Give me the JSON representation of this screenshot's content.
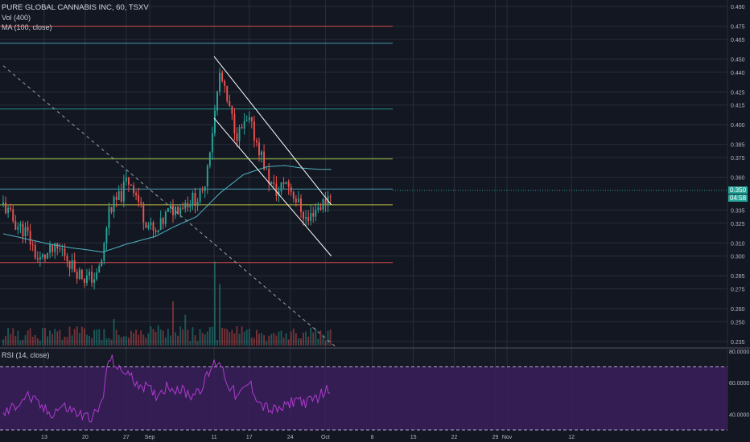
{
  "legend": {
    "symbol": "PURE GLOBAL CANNABIS INC, 60, TSXV",
    "volume": "Vol (400)",
    "ma": "MA (100, close)"
  },
  "rsi_legend": "RSI (14, close)",
  "price_tag": "0.350",
  "countdown_tag": "04:58",
  "colors": {
    "background": "#131722",
    "up": "#26a69a",
    "down": "#ef5350",
    "ma": "#4fb3c0",
    "rsi_line": "#b03ad1",
    "rsi_band": "#3a1f5c",
    "grid": "#2a2e39",
    "axis_text": "#b2b5be"
  },
  "chart_data": {
    "type": "candlestick",
    "symbol": "PURE GLOBAL CANNABIS INC",
    "interval": "60",
    "exchange": "TSXV",
    "price_axis": {
      "ticks": [
        "0.490",
        "0.475",
        "0.465",
        "0.450",
        "0.440",
        "0.425",
        "0.415",
        "0.400",
        "0.385",
        "0.375",
        "0.360",
        "0.335",
        "0.325",
        "0.310",
        "0.300",
        "0.285",
        "0.275",
        "0.260",
        "0.250",
        "0.235"
      ],
      "range": [
        0.23,
        0.495
      ]
    },
    "x_axis": {
      "ticks": [
        "13",
        "20",
        "27",
        "Sep",
        "11",
        "17",
        "24",
        "Oct",
        "8",
        "15",
        "22",
        "29",
        "Nov",
        "12"
      ]
    },
    "rsi_axis": {
      "ticks": [
        "80.0000",
        "60.0000",
        "40.0000"
      ],
      "range": [
        30,
        82
      ],
      "bands": [
        70,
        30
      ]
    },
    "last_price": 0.35,
    "horizontal_lines": [
      {
        "price": 0.475,
        "color": "#ef5350"
      },
      {
        "price": 0.462,
        "color": "#4fb3c0"
      },
      {
        "price": 0.412,
        "color": "#26a69a"
      },
      {
        "price": 0.374,
        "color": "#a5d64a"
      },
      {
        "price": 0.351,
        "color": "#4fb3c0"
      },
      {
        "price": 0.339,
        "color": "#d8d84a"
      },
      {
        "price": 0.295,
        "color": "#ef5350"
      }
    ],
    "trendlines": [
      {
        "from": [
          "Sep 11",
          0.452
        ],
        "to": [
          "Oct 1",
          0.339
        ],
        "color": "#ffffff",
        "style": "solid"
      },
      {
        "from": [
          "Sep 11",
          0.405
        ],
        "to": [
          "Oct 1",
          0.3
        ],
        "color": "#ffffff",
        "style": "solid"
      },
      {
        "from": [
          "Aug 6",
          0.445
        ],
        "to": [
          "Oct 2",
          0.23
        ],
        "color": "#9aa0ab",
        "style": "dashed"
      }
    ],
    "price_anchors": [
      [
        "Aug 6",
        0.339
      ],
      [
        "Aug 8",
        0.325
      ],
      [
        "Aug 10",
        0.318
      ],
      [
        "Aug 12",
        0.296
      ],
      [
        "Aug 14",
        0.303
      ],
      [
        "Aug 16",
        0.305
      ],
      [
        "Aug 18",
        0.291
      ],
      [
        "Aug 20",
        0.283
      ],
      [
        "Aug 22",
        0.284
      ],
      [
        "Aug 23",
        0.3
      ],
      [
        "Aug 24",
        0.335
      ],
      [
        "Aug 26",
        0.345
      ],
      [
        "Aug 27",
        0.357
      ],
      [
        "Aug 28",
        0.356
      ],
      [
        "Aug 30",
        0.33
      ],
      [
        "Sep 1",
        0.315
      ],
      [
        "Sep 3",
        0.333
      ],
      [
        "Sep 5",
        0.338
      ],
      [
        "Sep 7",
        0.343
      ],
      [
        "Sep 9",
        0.345
      ],
      [
        "Sep 10",
        0.375
      ],
      [
        "Sep 11",
        0.405
      ],
      [
        "Sep 12",
        0.44
      ],
      [
        "Sep 13",
        0.42
      ],
      [
        "Sep 14",
        0.405
      ],
      [
        "Sep 15",
        0.392
      ],
      [
        "Sep 16",
        0.398
      ],
      [
        "Sep 17",
        0.402
      ],
      [
        "Sep 18",
        0.39
      ],
      [
        "Sep 19",
        0.378
      ],
      [
        "Sep 20",
        0.362
      ],
      [
        "Sep 21",
        0.352
      ],
      [
        "Sep 22",
        0.348
      ],
      [
        "Sep 23",
        0.358
      ],
      [
        "Sep 24",
        0.352
      ],
      [
        "Sep 25",
        0.343
      ],
      [
        "Sep 26",
        0.334
      ],
      [
        "Sep 27",
        0.326
      ],
      [
        "Sep 28",
        0.335
      ],
      [
        "Sep 29",
        0.338
      ],
      [
        "Sep 30",
        0.342
      ],
      [
        "Oct 1",
        0.35
      ]
    ],
    "ma_anchors": [
      [
        "Aug 6",
        0.317
      ],
      [
        "Aug 10",
        0.313
      ],
      [
        "Aug 14",
        0.309
      ],
      [
        "Aug 18",
        0.306
      ],
      [
        "Aug 20",
        0.305
      ],
      [
        "Aug 23",
        0.303
      ],
      [
        "Aug 27",
        0.309
      ],
      [
        "Sep 1",
        0.315
      ],
      [
        "Sep 4",
        0.322
      ],
      [
        "Sep 8",
        0.33
      ],
      [
        "Sep 12",
        0.348
      ],
      [
        "Sep 16",
        0.362
      ],
      [
        "Sep 20",
        0.368
      ],
      [
        "Sep 23",
        0.369
      ],
      [
        "Sep 26",
        0.367
      ],
      [
        "Sep 29",
        0.366
      ],
      [
        "Oct 1",
        0.366
      ]
    ],
    "rsi_anchors": [
      [
        "Aug 6",
        40
      ],
      [
        "Aug 8",
        45
      ],
      [
        "Aug 10",
        52
      ],
      [
        "Aug 12",
        46
      ],
      [
        "Aug 14",
        40
      ],
      [
        "Aug 16",
        45
      ],
      [
        "Aug 18",
        42
      ],
      [
        "Aug 20",
        38
      ],
      [
        "Aug 22",
        40
      ],
      [
        "Aug 23",
        50
      ],
      [
        "Aug 24",
        75
      ],
      [
        "Aug 25",
        73
      ],
      [
        "Aug 26",
        66
      ],
      [
        "Aug 27",
        68
      ],
      [
        "Aug 28",
        62
      ],
      [
        "Aug 30",
        58
      ],
      [
        "Sep 1",
        52
      ],
      [
        "Sep 3",
        58
      ],
      [
        "Sep 5",
        56
      ],
      [
        "Sep 7",
        52
      ],
      [
        "Sep 9",
        58
      ],
      [
        "Sep 11",
        72
      ],
      [
        "Sep 12",
        74
      ],
      [
        "Sep 13",
        62
      ],
      [
        "Sep 15",
        50
      ],
      [
        "Sep 17",
        60
      ],
      [
        "Sep 19",
        46
      ],
      [
        "Sep 21",
        42
      ],
      [
        "Sep 23",
        44
      ],
      [
        "Sep 25",
        50
      ],
      [
        "Sep 27",
        47
      ],
      [
        "Sep 29",
        52
      ],
      [
        "Oct 1",
        57
      ]
    ],
    "volume_spikes": [
      [
        "Sep 4",
        0.5
      ],
      [
        "Sep 11",
        0.95
      ],
      [
        "Sep 12",
        0.7
      ],
      [
        "Sep 6",
        0.35
      ],
      [
        "Aug 25",
        0.3
      ]
    ]
  }
}
